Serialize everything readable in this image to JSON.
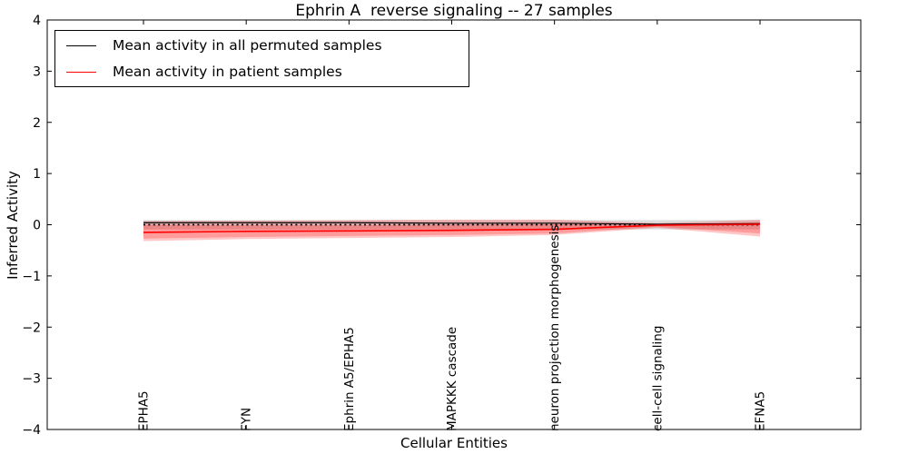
{
  "legend": {
    "items": [
      {
        "label": "Mean activity in all permuted samples",
        "color": "#000000"
      },
      {
        "label": "Mean activity in patient samples",
        "color": "#ff0000"
      }
    ]
  },
  "chart_data": {
    "type": "line",
    "title": "Ephrin A  reverse signaling -- 27 samples",
    "xlabel": "Cellular Entities",
    "ylabel": "Inferred Activity",
    "ylim": [
      -4,
      4
    ],
    "yticks": [
      {
        "v": 4,
        "label": "4"
      },
      {
        "v": 3,
        "label": "3"
      },
      {
        "v": 2,
        "label": "2"
      },
      {
        "v": 1,
        "label": "1"
      },
      {
        "v": 0,
        "label": "0"
      },
      {
        "v": -1,
        "label": "−1"
      },
      {
        "v": -2,
        "label": "−2"
      },
      {
        "v": -3,
        "label": "−3"
      },
      {
        "v": -4,
        "label": "−4"
      }
    ],
    "categories": [
      "EPHA5",
      "FYN",
      "Ephrin A5/EPHA5",
      "MAPKKK cascade",
      "neuron projection morphogenesis",
      "cell-cell signaling",
      "EFNA5"
    ],
    "grid": false,
    "legend_position": "upper left",
    "series": [
      {
        "name": "Mean activity in all permuted samples",
        "color": "#000000",
        "style": "solid",
        "width": 1.2,
        "values": [
          0.04,
          0.04,
          0.04,
          0.03,
          0.03,
          0.01,
          0.02
        ]
      },
      {
        "name": "Zero reference",
        "color": "#000000",
        "style": "dotted",
        "width": 1.8,
        "values": [
          0,
          0,
          0,
          0,
          0,
          0,
          0
        ]
      },
      {
        "name": "Mean activity in patient samples",
        "color": "#ff0000",
        "style": "solid",
        "width": 1.6,
        "values": [
          -0.15,
          -0.13,
          -0.12,
          -0.11,
          -0.09,
          -0.01,
          0.01
        ]
      }
    ],
    "bands": [
      {
        "name": "Permuted samples range",
        "color": "#999999",
        "opacity": 0.33,
        "upper": [
          0.09,
          0.09,
          0.09,
          0.09,
          0.09,
          0.09,
          0.09
        ],
        "lower": [
          -0.09,
          -0.09,
          -0.09,
          -0.09,
          -0.09,
          -0.09,
          -0.09
        ]
      },
      {
        "name": "Patient samples outer range",
        "color": "#ff0000",
        "opacity": 0.22,
        "upper": [
          0.07,
          0.08,
          0.09,
          0.1,
          0.1,
          0.03,
          0.1
        ],
        "lower": [
          -0.32,
          -0.28,
          -0.26,
          -0.24,
          -0.2,
          -0.06,
          -0.23
        ]
      },
      {
        "name": "Patient samples inner range",
        "color": "#ff0000",
        "opacity": 0.22,
        "upper": [
          0.0,
          -0.01,
          -0.01,
          0.0,
          0.01,
          0.0,
          0.05
        ],
        "lower": [
          -0.27,
          -0.24,
          -0.22,
          -0.2,
          -0.17,
          -0.04,
          -0.17
        ]
      }
    ]
  }
}
